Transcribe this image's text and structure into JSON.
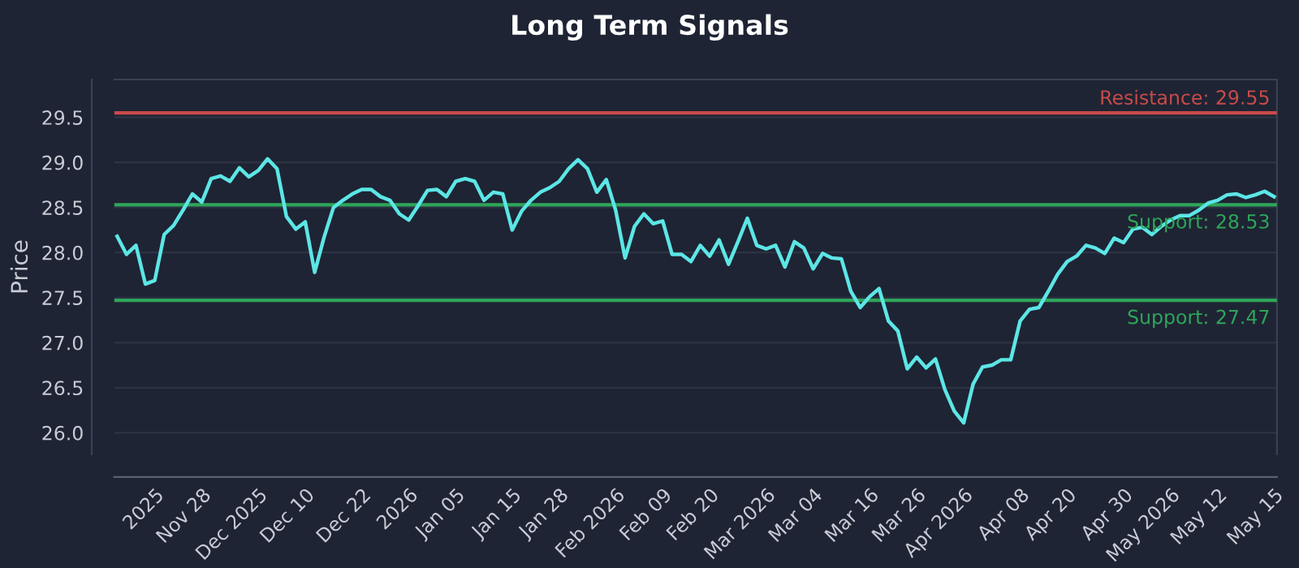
{
  "chart_data": {
    "type": "line",
    "title": "Long Term Signals",
    "ylabel": "Price",
    "categories": [
      null,
      null,
      null,
      null,
      "2025",
      null,
      null,
      null,
      null,
      "Nov 28",
      null,
      null,
      null,
      null,
      null,
      "Dec 2025",
      null,
      null,
      null,
      null,
      "Dec 10",
      null,
      null,
      null,
      null,
      null,
      "Dec 22",
      null,
      null,
      null,
      null,
      "2026",
      null,
      null,
      null,
      null,
      "Jan 05",
      null,
      null,
      null,
      null,
      null,
      "Jan 15",
      null,
      null,
      null,
      null,
      "Jan 28",
      null,
      null,
      null,
      null,
      null,
      "Feb 2026",
      null,
      null,
      null,
      null,
      "Feb 09",
      null,
      null,
      null,
      null,
      "Feb 20",
      null,
      null,
      null,
      null,
      null,
      "Mar 2026",
      null,
      null,
      null,
      null,
      "Mar 04",
      null,
      null,
      null,
      null,
      null,
      "Mar 16",
      null,
      null,
      null,
      null,
      "Mar 26",
      null,
      null,
      null,
      null,
      "Apr 2026",
      null,
      null,
      null,
      null,
      null,
      "Apr 08",
      null,
      null,
      null,
      null,
      "Apr 20",
      null,
      null,
      null,
      null,
      null,
      "Apr 30",
      null,
      null,
      null,
      null,
      "May 2026",
      null,
      null,
      null,
      null,
      "May 12",
      null,
      null,
      null,
      null,
      null,
      "May 15"
    ],
    "series": [
      {
        "color": "#5ce6e6",
        "values": [
          28.18,
          27.98,
          28.08,
          27.65,
          27.69,
          28.2,
          28.3,
          28.47,
          28.65,
          28.56,
          28.82,
          28.85,
          28.79,
          28.94,
          28.84,
          28.91,
          29.04,
          28.93,
          28.4,
          28.26,
          28.34,
          27.78,
          28.17,
          28.5,
          28.58,
          28.65,
          28.7,
          28.7,
          28.62,
          28.58,
          28.43,
          28.36,
          28.52,
          28.69,
          28.7,
          28.62,
          28.79,
          28.82,
          28.79,
          28.58,
          28.67,
          28.65,
          28.25,
          28.46,
          28.58,
          28.67,
          28.72,
          28.79,
          28.93,
          29.03,
          28.93,
          28.67,
          28.81,
          28.47,
          27.94,
          28.29,
          28.43,
          28.32,
          28.35,
          27.98,
          27.98,
          27.9,
          28.08,
          27.96,
          28.14,
          27.87,
          28.12,
          28.38,
          28.08,
          28.04,
          28.08,
          27.84,
          28.12,
          28.05,
          27.82,
          27.99,
          27.94,
          27.93,
          27.57,
          27.39,
          27.51,
          27.6,
          27.24,
          27.13,
          26.71,
          26.84,
          26.72,
          26.82,
          26.48,
          26.24,
          26.11,
          26.54,
          26.73,
          26.75,
          26.81,
          26.81,
          27.24,
          27.37,
          27.39,
          27.57,
          27.76,
          27.9,
          27.96,
          28.08,
          28.05,
          27.99,
          28.16,
          28.11,
          28.26,
          28.28,
          28.2,
          28.29,
          28.36,
          28.41,
          28.41,
          28.47,
          28.55,
          28.58,
          28.64,
          28.65,
          28.61,
          28.64,
          28.68,
          28.62
        ]
      }
    ],
    "ylim": [
      25.76,
      29.92
    ],
    "yticks": [
      {
        "value": 26.0,
        "label": "26.0"
      },
      {
        "value": 26.5,
        "label": "26.5"
      },
      {
        "value": 27.0,
        "label": "27.0"
      },
      {
        "value": 27.5,
        "label": "27.5"
      },
      {
        "value": 28.0,
        "label": "28.0"
      },
      {
        "value": 28.5,
        "label": "28.5"
      },
      {
        "value": 29.0,
        "label": "29.0"
      },
      {
        "value": 29.5,
        "label": "29.5"
      }
    ],
    "ref_lines": [
      {
        "axis": "y",
        "value": 29.55,
        "label": "Resistance: 29.55",
        "color": "#c94a4a"
      },
      {
        "axis": "y",
        "value": 28.53,
        "label": "Support: 28.53",
        "color": "#2ea55a"
      },
      {
        "axis": "y",
        "value": 27.47,
        "label": "Support: 27.47",
        "color": "#2ea55a"
      }
    ],
    "grid": "y",
    "legend": false,
    "marker": "none",
    "line_style": "solid"
  }
}
